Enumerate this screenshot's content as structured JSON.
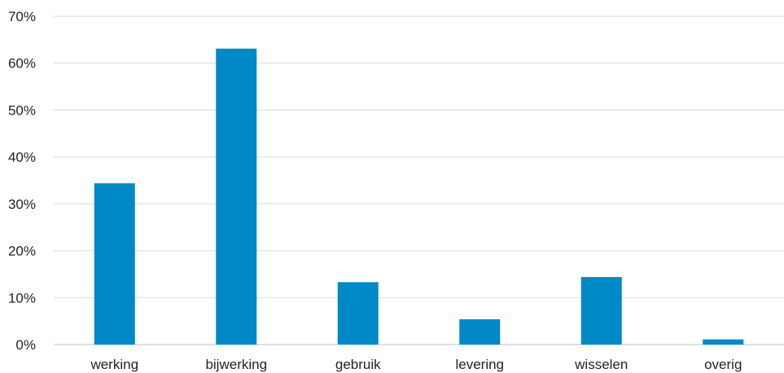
{
  "chart_data": {
    "type": "bar",
    "categories": [
      "werking",
      "bijwerking",
      "gebruik",
      "levering",
      "wisselen",
      "overig"
    ],
    "values": [
      34.4,
      63.1,
      13.3,
      5.4,
      14.4,
      1.1
    ],
    "yticks": [
      "0%",
      "10%",
      "20%",
      "30%",
      "40%",
      "50%",
      "60%",
      "70%"
    ],
    "ylim": [
      0,
      70
    ],
    "grid": true,
    "bar_color": "#0088c7"
  }
}
